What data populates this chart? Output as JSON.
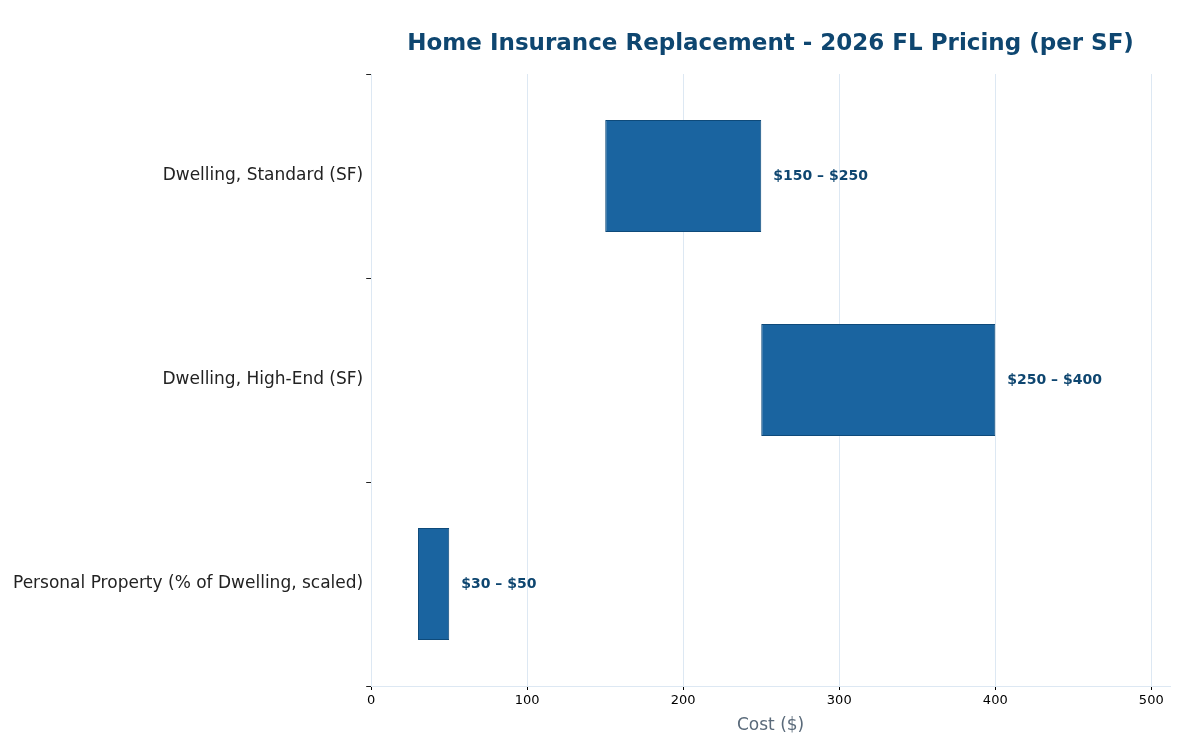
{
  "chart_data": {
    "type": "bar",
    "orientation": "horizontal",
    "title": "Home Insurance Replacement - 2026 FL Pricing (per SF)",
    "xlabel": "Cost ($)",
    "categories": [
      "Dwelling, Standard (SF)",
      "Dwelling, High-End (SF)",
      "Personal Property (% of Dwelling, scaled)"
    ],
    "base": [
      150,
      250,
      30
    ],
    "values": [
      100,
      150,
      20
    ],
    "color": "#1a64a0",
    "annotations": [
      {
        "text": "$150 – $250",
        "x": 250,
        "y": "Dwelling, Standard (SF)"
      },
      {
        "text": "$250 – $400",
        "x": 400,
        "y": "Dwelling, High-End (SF)"
      },
      {
        "text": "$30 – $50",
        "x": 50,
        "y": "Personal Property (% of Dwelling, scaled)"
      }
    ],
    "xlim": [
      0,
      512
    ],
    "xticks": [
      0,
      100,
      200,
      300,
      400,
      500
    ],
    "grid": "x",
    "legend": false
  }
}
